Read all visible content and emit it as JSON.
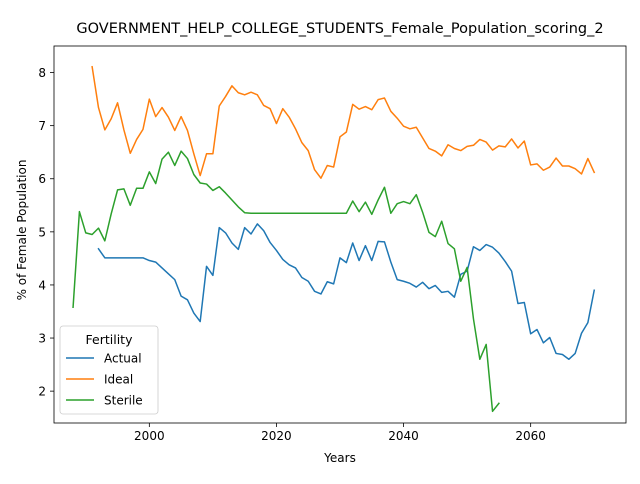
{
  "chart_data": {
    "type": "line",
    "title": "GOVERNMENT_HELP_COLLEGE_STUDENTS_Female_Population_scoring_2",
    "xlabel": "Years",
    "ylabel": "% of Female Population",
    "xlim": [
      1985,
      2075
    ],
    "ylim": [
      1.4,
      8.5
    ],
    "xticks": [
      2000,
      2020,
      2040,
      2060
    ],
    "yticks": [
      2,
      3,
      4,
      5,
      6,
      7,
      8
    ],
    "grid": false,
    "legend": {
      "title": "Fertility",
      "placement": "lower-left"
    },
    "series": [
      {
        "name": "Actual",
        "color": "#1f77b4",
        "points": [
          [
            1992,
            4.68
          ],
          [
            1993,
            4.51
          ],
          [
            1994,
            4.51
          ],
          [
            1995,
            4.51
          ],
          [
            1996,
            4.51
          ],
          [
            1997,
            4.51
          ],
          [
            1998,
            4.51
          ],
          [
            1999,
            4.51
          ],
          [
            2000,
            4.46
          ],
          [
            2001,
            4.43
          ],
          [
            2002,
            4.32
          ],
          [
            2003,
            4.21
          ],
          [
            2004,
            4.1
          ],
          [
            2005,
            3.79
          ],
          [
            2006,
            3.72
          ],
          [
            2007,
            3.47
          ],
          [
            2008,
            3.31
          ],
          [
            2009,
            4.35
          ],
          [
            2010,
            4.18
          ],
          [
            2011,
            5.08
          ],
          [
            2012,
            4.98
          ],
          [
            2013,
            4.79
          ],
          [
            2014,
            4.67
          ],
          [
            2015,
            5.08
          ],
          [
            2016,
            4.96
          ],
          [
            2017,
            5.15
          ],
          [
            2018,
            5.02
          ],
          [
            2019,
            4.8
          ],
          [
            2020,
            4.65
          ],
          [
            2021,
            4.48
          ],
          [
            2022,
            4.38
          ],
          [
            2023,
            4.32
          ],
          [
            2024,
            4.14
          ],
          [
            2025,
            4.07
          ],
          [
            2026,
            3.88
          ],
          [
            2027,
            3.83
          ],
          [
            2028,
            4.06
          ],
          [
            2029,
            4.02
          ],
          [
            2030,
            4.51
          ],
          [
            2031,
            4.42
          ],
          [
            2032,
            4.79
          ],
          [
            2033,
            4.46
          ],
          [
            2034,
            4.74
          ],
          [
            2035,
            4.46
          ],
          [
            2036,
            4.82
          ],
          [
            2037,
            4.81
          ],
          [
            2038,
            4.43
          ],
          [
            2039,
            4.1
          ],
          [
            2040,
            4.07
          ],
          [
            2041,
            4.03
          ],
          [
            2042,
            3.96
          ],
          [
            2043,
            4.05
          ],
          [
            2044,
            3.93
          ],
          [
            2045,
            3.99
          ],
          [
            2046,
            3.86
          ],
          [
            2047,
            3.88
          ],
          [
            2048,
            3.77
          ],
          [
            2049,
            4.2
          ],
          [
            2050,
            4.26
          ],
          [
            2051,
            4.72
          ],
          [
            2052,
            4.65
          ],
          [
            2053,
            4.76
          ],
          [
            2054,
            4.71
          ],
          [
            2055,
            4.6
          ],
          [
            2056,
            4.44
          ],
          [
            2057,
            4.26
          ],
          [
            2058,
            3.65
          ],
          [
            2059,
            3.67
          ],
          [
            2060,
            3.08
          ],
          [
            2061,
            3.16
          ],
          [
            2062,
            2.91
          ],
          [
            2063,
            3.01
          ],
          [
            2064,
            2.71
          ],
          [
            2065,
            2.69
          ],
          [
            2066,
            2.6
          ],
          [
            2067,
            2.71
          ],
          [
            2068,
            3.09
          ],
          [
            2069,
            3.29
          ],
          [
            2070,
            3.9
          ]
        ]
      },
      {
        "name": "Ideal",
        "color": "#ff7f0e",
        "points": [
          [
            1991,
            8.11
          ],
          [
            1992,
            7.34
          ],
          [
            1993,
            6.92
          ],
          [
            1994,
            7.13
          ],
          [
            1995,
            7.43
          ],
          [
            1996,
            6.92
          ],
          [
            1997,
            6.48
          ],
          [
            1998,
            6.74
          ],
          [
            1999,
            6.93
          ],
          [
            2000,
            7.5
          ],
          [
            2001,
            7.17
          ],
          [
            2002,
            7.34
          ],
          [
            2003,
            7.16
          ],
          [
            2004,
            6.91
          ],
          [
            2005,
            7.17
          ],
          [
            2006,
            6.91
          ],
          [
            2007,
            6.47
          ],
          [
            2008,
            6.06
          ],
          [
            2009,
            6.47
          ],
          [
            2010,
            6.47
          ],
          [
            2011,
            7.37
          ],
          [
            2012,
            7.55
          ],
          [
            2013,
            7.75
          ],
          [
            2014,
            7.62
          ],
          [
            2015,
            7.58
          ],
          [
            2016,
            7.63
          ],
          [
            2017,
            7.58
          ],
          [
            2018,
            7.38
          ],
          [
            2019,
            7.32
          ],
          [
            2020,
            7.04
          ],
          [
            2021,
            7.32
          ],
          [
            2022,
            7.16
          ],
          [
            2023,
            6.94
          ],
          [
            2024,
            6.68
          ],
          [
            2025,
            6.53
          ],
          [
            2026,
            6.17
          ],
          [
            2027,
            6.01
          ],
          [
            2028,
            6.25
          ],
          [
            2029,
            6.22
          ],
          [
            2030,
            6.79
          ],
          [
            2031,
            6.88
          ],
          [
            2032,
            7.4
          ],
          [
            2033,
            7.31
          ],
          [
            2034,
            7.36
          ],
          [
            2035,
            7.3
          ],
          [
            2036,
            7.49
          ],
          [
            2037,
            7.52
          ],
          [
            2038,
            7.27
          ],
          [
            2039,
            7.14
          ],
          [
            2040,
            6.99
          ],
          [
            2041,
            6.94
          ],
          [
            2042,
            6.97
          ],
          [
            2043,
            6.77
          ],
          [
            2044,
            6.57
          ],
          [
            2045,
            6.52
          ],
          [
            2046,
            6.43
          ],
          [
            2047,
            6.64
          ],
          [
            2048,
            6.57
          ],
          [
            2049,
            6.53
          ],
          [
            2050,
            6.61
          ],
          [
            2051,
            6.63
          ],
          [
            2052,
            6.74
          ],
          [
            2053,
            6.69
          ],
          [
            2054,
            6.54
          ],
          [
            2055,
            6.62
          ],
          [
            2056,
            6.6
          ],
          [
            2057,
            6.75
          ],
          [
            2058,
            6.58
          ],
          [
            2059,
            6.71
          ],
          [
            2060,
            6.26
          ],
          [
            2061,
            6.28
          ],
          [
            2062,
            6.16
          ],
          [
            2063,
            6.22
          ],
          [
            2064,
            6.39
          ],
          [
            2065,
            6.24
          ],
          [
            2066,
            6.24
          ],
          [
            2067,
            6.19
          ],
          [
            2068,
            6.09
          ],
          [
            2069,
            6.38
          ],
          [
            2070,
            6.12
          ]
        ]
      },
      {
        "name": "Sterile",
        "color": "#2ca02c",
        "points": [
          [
            1988,
            3.58
          ],
          [
            1989,
            5.38
          ],
          [
            1990,
            4.98
          ],
          [
            1991,
            4.95
          ],
          [
            1992,
            5.07
          ],
          [
            1993,
            4.83
          ],
          [
            1994,
            5.34
          ],
          [
            1995,
            5.79
          ],
          [
            1996,
            5.81
          ],
          [
            1997,
            5.5
          ],
          [
            1998,
            5.82
          ],
          [
            1999,
            5.82
          ],
          [
            2000,
            6.13
          ],
          [
            2001,
            5.91
          ],
          [
            2002,
            6.37
          ],
          [
            2003,
            6.5
          ],
          [
            2004,
            6.25
          ],
          [
            2005,
            6.52
          ],
          [
            2006,
            6.38
          ],
          [
            2007,
            6.08
          ],
          [
            2008,
            5.92
          ],
          [
            2009,
            5.9
          ],
          [
            2010,
            5.78
          ],
          [
            2011,
            5.85
          ],
          [
            2012,
            5.73
          ],
          [
            2013,
            5.6
          ],
          [
            2014,
            5.47
          ],
          [
            2015,
            5.36
          ],
          [
            2016,
            5.35
          ],
          [
            2020,
            5.35
          ],
          [
            2025,
            5.35
          ],
          [
            2031,
            5.35
          ],
          [
            2032,
            5.58
          ],
          [
            2033,
            5.38
          ],
          [
            2034,
            5.56
          ],
          [
            2035,
            5.33
          ],
          [
            2036,
            5.6
          ],
          [
            2037,
            5.84
          ],
          [
            2038,
            5.35
          ],
          [
            2039,
            5.53
          ],
          [
            2040,
            5.57
          ],
          [
            2041,
            5.53
          ],
          [
            2042,
            5.7
          ],
          [
            2043,
            5.37
          ],
          [
            2044,
            4.99
          ],
          [
            2045,
            4.91
          ],
          [
            2046,
            5.2
          ],
          [
            2047,
            4.78
          ],
          [
            2048,
            4.68
          ],
          [
            2049,
            4.07
          ],
          [
            2050,
            4.33
          ],
          [
            2051,
            3.36
          ],
          [
            2052,
            2.6
          ],
          [
            2053,
            2.88
          ],
          [
            2054,
            1.62
          ],
          [
            2055,
            1.77
          ]
        ]
      }
    ]
  }
}
